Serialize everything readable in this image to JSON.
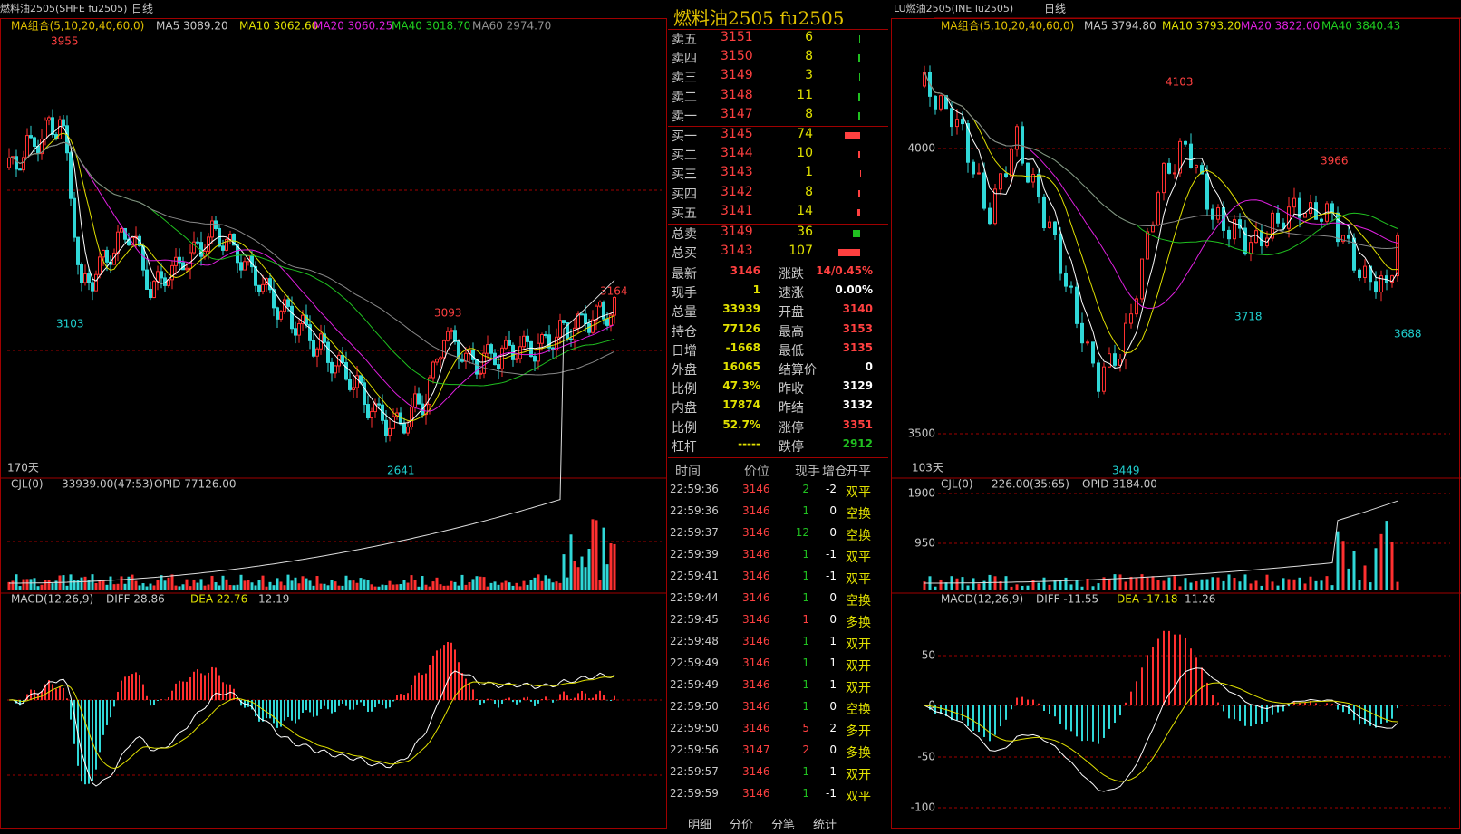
{
  "left": {
    "symbol": "燃料油2505(SHFE fu2505)",
    "period": "日线",
    "ma_label": "MA组合(5,10,20,40,60,0)",
    "ma": [
      "MA5 3089.20",
      "MA10 3062.60",
      "MA20 3060.25",
      "MA40 3018.70",
      "MA60 2974.70"
    ],
    "price_labels": [
      "3955",
      "3103",
      "3093",
      "2641",
      "3164"
    ],
    "days": "170天",
    "vol": {
      "label": "CJL(0)",
      "value": "33939.00(47:53)",
      "opid": "OPID 77126.00"
    },
    "macd": {
      "label": "MACD(12,26,9)",
      "diff": "DIFF 28.86",
      "dea": "DEA 22.76",
      "macd": "12.19"
    }
  },
  "quote": {
    "title": "燃料油2505 fu2505",
    "asks": [
      {
        "label": "卖五",
        "price": "3151",
        "volume": 6
      },
      {
        "label": "卖四",
        "price": "3150",
        "volume": 8
      },
      {
        "label": "卖三",
        "price": "3149",
        "volume": 3
      },
      {
        "label": "卖二",
        "price": "3148",
        "volume": 11
      },
      {
        "label": "卖一",
        "price": "3147",
        "volume": 8
      }
    ],
    "bids": [
      {
        "label": "买一",
        "price": "3145",
        "volume": 74
      },
      {
        "label": "买二",
        "price": "3144",
        "volume": 10
      },
      {
        "label": "买三",
        "price": "3143",
        "volume": 1
      },
      {
        "label": "买四",
        "price": "3142",
        "volume": 8
      },
      {
        "label": "买五",
        "price": "3141",
        "volume": 14
      }
    ],
    "totals": [
      {
        "label": "总卖",
        "price": "3149",
        "volume": 36
      },
      {
        "label": "总买",
        "price": "3143",
        "volume": 107
      }
    ],
    "stats": [
      [
        "最新",
        "3146",
        "涨跌",
        "14/0.45%"
      ],
      [
        "现手",
        "1",
        "速涨",
        "0.00%"
      ],
      [
        "总量",
        "33939",
        "开盘",
        "3140"
      ],
      [
        "持仓",
        "77126",
        "最高",
        "3153"
      ],
      [
        "日增",
        "-1668",
        "最低",
        "3135"
      ],
      [
        "外盘",
        "16065",
        "结算价",
        "0"
      ],
      [
        "比例",
        "47.3%",
        "昨收",
        "3129"
      ],
      [
        "内盘",
        "17874",
        "昨结",
        "3132"
      ],
      [
        "比例",
        "52.7%",
        "涨停",
        "3351"
      ],
      [
        "杠杆",
        "-----",
        "跌停",
        "2912"
      ]
    ],
    "trade_header": [
      "时间",
      "价位",
      "现手",
      "增仓",
      "开平"
    ],
    "trades": [
      [
        "22:59:36",
        "3146",
        "2",
        "-2",
        "双平"
      ],
      [
        "22:59:36",
        "3146",
        "1",
        "0",
        "空换"
      ],
      [
        "22:59:37",
        "3146",
        "12",
        "0",
        "空换"
      ],
      [
        "22:59:39",
        "3146",
        "1",
        "-1",
        "双平"
      ],
      [
        "22:59:41",
        "3146",
        "1",
        "-1",
        "双平"
      ],
      [
        "22:59:44",
        "3146",
        "1",
        "0",
        "空换"
      ],
      [
        "22:59:45",
        "3146",
        "1",
        "0",
        "多换"
      ],
      [
        "22:59:48",
        "3146",
        "1",
        "1",
        "双开"
      ],
      [
        "22:59:49",
        "3146",
        "1",
        "1",
        "双开"
      ],
      [
        "22:59:49",
        "3146",
        "1",
        "1",
        "双开"
      ],
      [
        "22:59:50",
        "3146",
        "1",
        "0",
        "空换"
      ],
      [
        "22:59:50",
        "3146",
        "5",
        "2",
        "多开"
      ],
      [
        "22:59:56",
        "3147",
        "2",
        "0",
        "多换"
      ],
      [
        "22:59:57",
        "3146",
        "1",
        "1",
        "双开"
      ],
      [
        "22:59:59",
        "3146",
        "1",
        "-1",
        "双平"
      ]
    ],
    "tabs": [
      "明细",
      "分价",
      "分笔",
      "统计"
    ]
  },
  "right": {
    "symbol": "LU燃油2505(INE lu2505)",
    "period": "日线",
    "ma_label": "MA组合(5,10,20,40,60,0)",
    "ma": [
      "MA5 3794.80",
      "MA10 3793.20",
      "MA20 3822.00",
      "MA40 3840.43"
    ],
    "price_labels": [
      "4103",
      "3966",
      "3718",
      "3688",
      "3449"
    ],
    "price_axis": [
      "4000",
      "3500"
    ],
    "days": "103天",
    "vol": {
      "label": "CJL(0)",
      "value": "226.00(35:65)",
      "opid": "OPID 3184.00",
      "axis": [
        "1900",
        "950"
      ]
    },
    "macd": {
      "label": "MACD(12,26,9)",
      "diff": "DIFF -11.55",
      "dea": "DEA -17.18",
      "macd": "11.26",
      "axis": [
        "50",
        "0",
        "-50",
        "-100"
      ]
    }
  }
}
